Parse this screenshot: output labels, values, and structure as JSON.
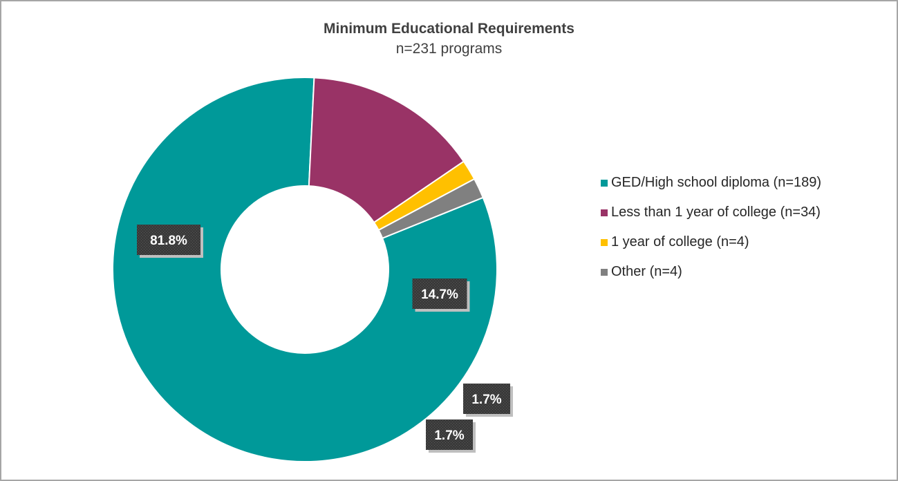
{
  "chart_data": {
    "type": "pie",
    "title": "Minimum Educational Requirements",
    "subtitle": "n=231 programs",
    "legend_position": "right",
    "slices": [
      {
        "name": "GED/High school diploma (n=189)",
        "value": 81.8,
        "label": "81.8%",
        "color": "#009999"
      },
      {
        "name": "Less than 1 year of college (n=34)",
        "value": 14.7,
        "label": "14.7%",
        "color": "#993366"
      },
      {
        "name": "1 year of college (n=4)",
        "value": 1.7,
        "label": "1.7%",
        "color": "#ffc000"
      },
      {
        "name": "Other (n=4)",
        "value": 1.7,
        "label": "1.7%",
        "color": "#808080"
      }
    ]
  }
}
